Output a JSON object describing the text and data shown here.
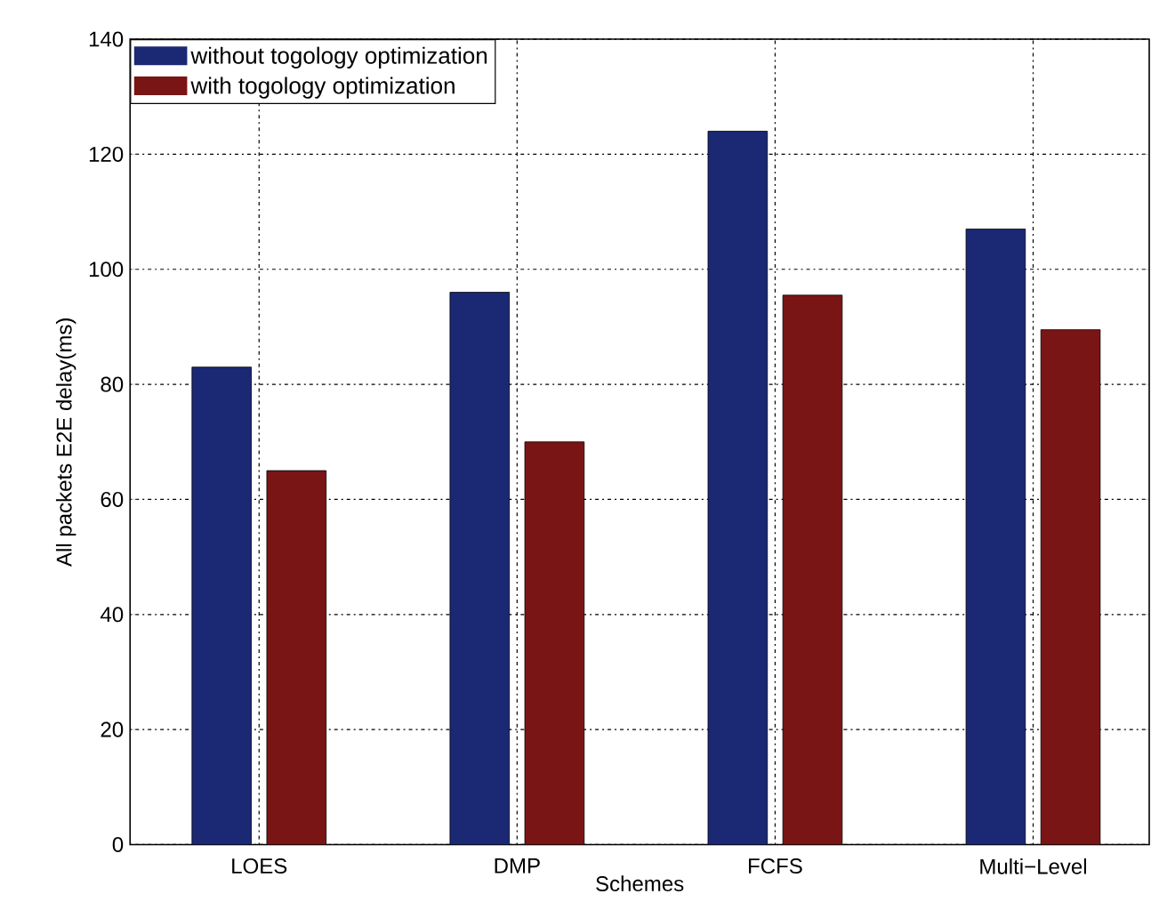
{
  "chart_data": {
    "type": "bar",
    "xlabel": "Schemes",
    "ylabel": "All packets E2E delay(ms)",
    "categories": [
      "LOES",
      "DMP",
      "FCFS",
      "Multi−Level"
    ],
    "series": [
      {
        "name": "without togology optimization",
        "color": "#1b2874",
        "values": [
          83,
          96,
          124,
          107
        ]
      },
      {
        "name": "with togology optimization",
        "color": "#7a1515",
        "values": [
          65,
          70,
          95.5,
          89.5
        ]
      }
    ],
    "ylim": [
      0,
      140
    ],
    "yticks": [
      0,
      20,
      40,
      60,
      80,
      100,
      120,
      140
    ],
    "grid": true,
    "legend": "top left"
  }
}
